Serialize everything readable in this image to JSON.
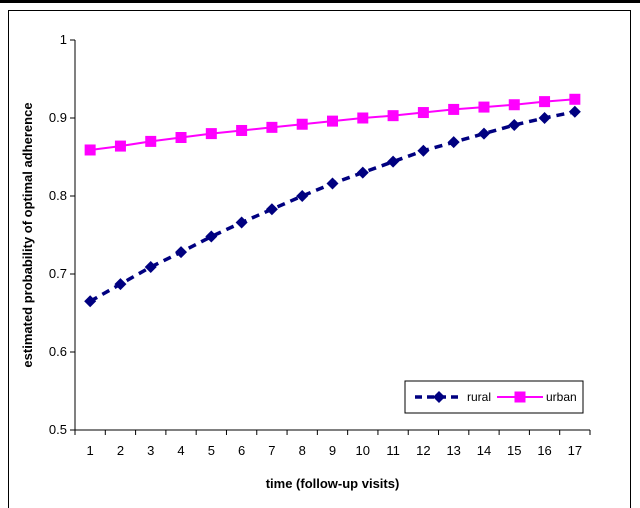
{
  "chart_data": {
    "type": "line",
    "title": "",
    "xlabel": "time (follow-up visits)",
    "ylabel": "estimated probability of optimal adherence",
    "x": [
      1,
      2,
      3,
      4,
      5,
      6,
      7,
      8,
      9,
      10,
      11,
      12,
      13,
      14,
      15,
      16,
      17
    ],
    "x_tick_labels": [
      "1",
      "2",
      "3",
      "4",
      "5",
      "6",
      "7",
      "8",
      "9",
      "10",
      "11",
      "12",
      "13",
      "14",
      "15",
      "16",
      "17"
    ],
    "ylim": [
      0.5,
      1
    ],
    "y_ticks": [
      0.5,
      0.6,
      0.7,
      0.8,
      0.9,
      1
    ],
    "y_tick_labels": [
      "0.5",
      "0.6",
      "0.7",
      "0.8",
      "0.9",
      "1"
    ],
    "grid": false,
    "legend_position": "bottom-right",
    "series": [
      {
        "name": "rural",
        "color": "#000080",
        "line_style": "dashed",
        "marker": "diamond",
        "values": [
          0.665,
          0.687,
          0.709,
          0.728,
          0.748,
          0.766,
          0.783,
          0.8,
          0.816,
          0.83,
          0.844,
          0.858,
          0.869,
          0.88,
          0.891,
          0.9,
          0.908
        ]
      },
      {
        "name": "urban",
        "color": "#ff00ff",
        "line_style": "solid",
        "marker": "square",
        "values": [
          0.859,
          0.864,
          0.87,
          0.875,
          0.88,
          0.884,
          0.888,
          0.892,
          0.896,
          0.9,
          0.903,
          0.907,
          0.911,
          0.914,
          0.917,
          0.921,
          0.924
        ]
      }
    ]
  }
}
